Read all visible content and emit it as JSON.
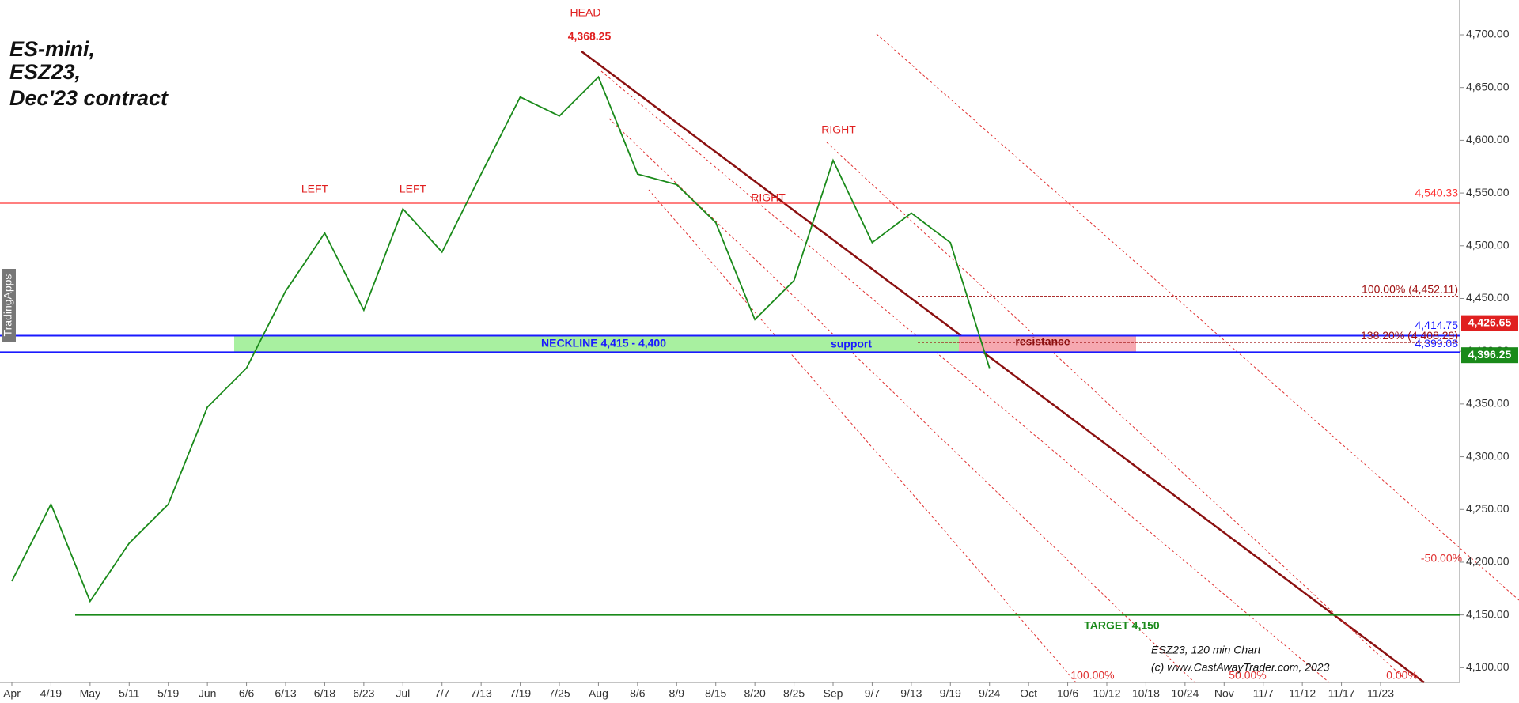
{
  "chart_data": {
    "type": "line",
    "title": [
      "ES-mini,",
      "ESZ23,",
      "Dec'23 contract"
    ],
    "categories": [
      "Apr",
      "4/19",
      "May",
      "5/11",
      "5/19",
      "Jun",
      "6/6",
      "6/13",
      "6/18",
      "6/23",
      "Jul",
      "7/7",
      "7/13",
      "7/19",
      "7/25",
      "Aug",
      "8/6",
      "8/9",
      "8/15",
      "8/20",
      "8/25",
      "Sep",
      "9/7",
      "9/13",
      "9/19",
      "9/24",
      "Oct",
      "10/6",
      "10/12",
      "10/18",
      "10/24",
      "Nov",
      "11/7",
      "11/12",
      "11/17",
      "11/23"
    ],
    "series": [
      {
        "name": "ESZ23",
        "color": "#1a8a1a",
        "values": [
          4182,
          4255,
          4163,
          4218,
          4255,
          4347,
          4384,
          4457,
          4512,
          4439,
          4535,
          4494,
          4568,
          4641,
          4623,
          4660,
          4568,
          4558,
          4522,
          4430,
          4467,
          4581,
          4503,
          4531,
          4503,
          4384,
          null,
          null,
          null,
          null,
          null,
          null,
          null,
          null,
          null,
          null
        ]
      }
    ],
    "ylim": [
      4086,
      4733
    ],
    "yticks": [
      {
        "value": 4100,
        "label": "4,100.00"
      },
      {
        "value": 4150,
        "label": "4,150.00"
      },
      {
        "value": 4200,
        "label": "4,200.00"
      },
      {
        "value": 4250,
        "label": "4,250.00"
      },
      {
        "value": 4300,
        "label": "4,300.00"
      },
      {
        "value": 4350,
        "label": "4,350.00"
      },
      {
        "value": 4400,
        "label": "4,400.00"
      },
      {
        "value": 4450,
        "label": "4,450.00"
      },
      {
        "value": 4500,
        "label": "4,500.00"
      },
      {
        "value": 4550,
        "label": "4,550.00"
      },
      {
        "value": 4600,
        "label": "4,600.00"
      },
      {
        "value": 4650,
        "label": "4,650.00"
      },
      {
        "value": 4700,
        "label": "4,700.00"
      }
    ],
    "levels": [
      {
        "value": 4540.33,
        "label": "4,540.33",
        "color": "#ff3333"
      },
      {
        "value": 4414.75,
        "label": "4,414.75",
        "color": "#1a1aff"
      },
      {
        "value": 4399.08,
        "label": "4,399.08",
        "color": "#1a1aff"
      },
      {
        "value": 4150,
        "label": "TARGET 4,150",
        "color": "#1a8a1a"
      }
    ],
    "fib_levels": [
      {
        "value": 4452.11,
        "label": "100.00% (4,452.11)",
        "color": "#a01010"
      },
      {
        "value": 4408.29,
        "label": "138.20% (4,408.29)",
        "color": "#a01010"
      }
    ],
    "price_tags": [
      {
        "value": 4426.65,
        "label": "4,426.65",
        "color": "#e02020"
      },
      {
        "value": 4396.25,
        "label": "4,396.25",
        "color": "#1a8a1a"
      }
    ],
    "annotations": [
      "HEAD",
      "4,368.25",
      "LEFT",
      "LEFT",
      "RIGHT",
      "RIGHT",
      "NECKLINE 4,415 - 4,400",
      "support",
      "resistance",
      "-50.00%",
      "100.00%",
      "50.00%",
      "0.00%",
      "ESZ23, 120 min Chart",
      "(c) www.CastAwayTrader.com, 2023",
      "TradingApps"
    ]
  }
}
